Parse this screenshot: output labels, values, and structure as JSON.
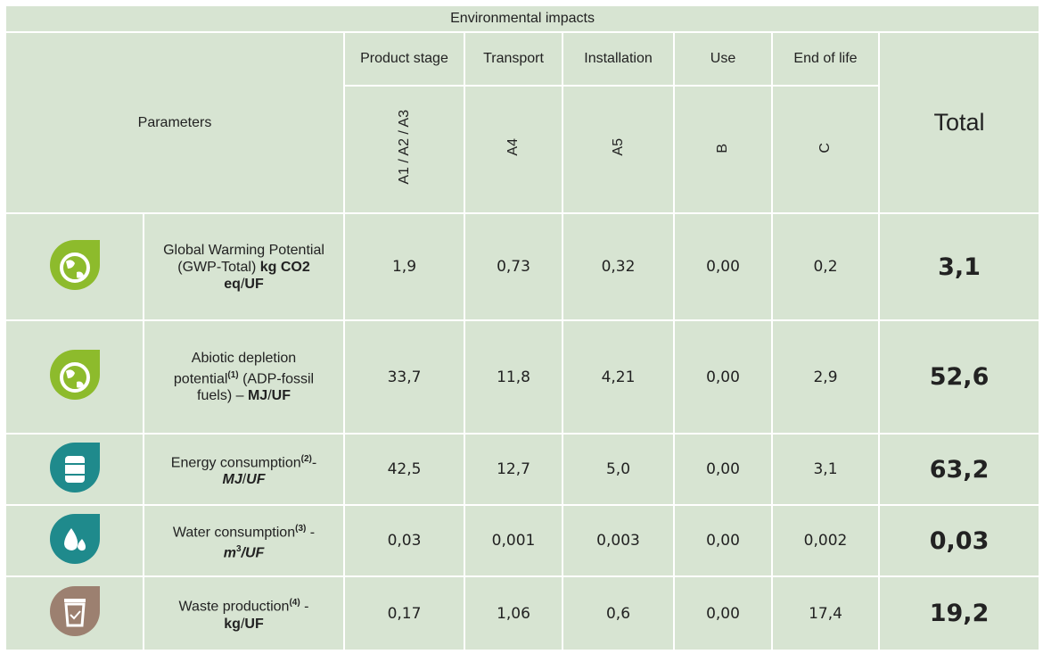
{
  "title": "Environmental impacts",
  "header": {
    "parameters": "Parameters",
    "total": "Total",
    "stages": [
      {
        "name": "Product stage",
        "code": "A1 / A2 / A3"
      },
      {
        "name": "Transport",
        "code": "A4"
      },
      {
        "name": "Installation",
        "code": "A5"
      },
      {
        "name": "Use",
        "code": "B"
      },
      {
        "name": "End of life",
        "code": "C"
      }
    ]
  },
  "rows": [
    {
      "icon": {
        "kind": "globe",
        "color": "#8dbb2c"
      },
      "label": [
        {
          "text": "Global Warming Potential (GWP-Total) ",
          "style": "n"
        },
        {
          "text": "kg CO2 eq",
          "style": "b"
        },
        {
          "text": "/",
          "style": "n"
        },
        {
          "text": "UF",
          "style": "b"
        }
      ],
      "values": [
        "1,9",
        "0,73",
        "0,32",
        "0,00",
        "0,2"
      ],
      "total": "3,1"
    },
    {
      "icon": {
        "kind": "globe",
        "color": "#8dbb2c"
      },
      "label": [
        {
          "text": "Abiotic depletion potential",
          "style": "n"
        },
        {
          "text": "(1)",
          "style": "sup"
        },
        {
          "text": " (ADP-fossil fuels) – ",
          "style": "n"
        },
        {
          "text": "MJ",
          "style": "b"
        },
        {
          "text": "/",
          "style": "n"
        },
        {
          "text": "UF",
          "style": "b"
        }
      ],
      "values": [
        "33,7",
        "11,8",
        "4,21",
        "0,00",
        "2,9"
      ],
      "total": "52,6"
    },
    {
      "icon": {
        "kind": "barrel",
        "color": "#1f8a8c"
      },
      "label": [
        {
          "text": "Energy consumption",
          "style": "n"
        },
        {
          "text": "(2)",
          "style": "sup"
        },
        {
          "text": "- ",
          "style": "n"
        },
        {
          "text": "MJ",
          "style": "bi"
        },
        {
          "text": "/",
          "style": "n"
        },
        {
          "text": "UF",
          "style": "bi"
        }
      ],
      "values": [
        "42,5",
        "12,7",
        "5,0",
        "0,00",
        "3,1"
      ],
      "total": "63,2"
    },
    {
      "icon": {
        "kind": "drops",
        "color": "#1f8a8c"
      },
      "label": [
        {
          "text": "Water consumption",
          "style": "n"
        },
        {
          "text": "(3)",
          "style": "sup"
        },
        {
          "text": " - ",
          "style": "n"
        },
        {
          "text": "m",
          "style": "bi"
        },
        {
          "text": "3",
          "style": "sup"
        },
        {
          "text": "/UF",
          "style": "bi"
        }
      ],
      "values": [
        "0,03",
        "0,001",
        "0,003",
        "0,00",
        "0,002"
      ],
      "total": "0,03"
    },
    {
      "icon": {
        "kind": "bin",
        "color": "#9c8070"
      },
      "label": [
        {
          "text": "Waste production",
          "style": "n"
        },
        {
          "text": "(4)",
          "style": "sup"
        },
        {
          "text": " - ",
          "style": "n"
        },
        {
          "text": "kg",
          "style": "b"
        },
        {
          "text": "/",
          "style": "n"
        },
        {
          "text": "UF",
          "style": "b"
        }
      ],
      "values": [
        "0,17",
        "1,06",
        "0,6",
        "0,00",
        "17,4"
      ],
      "total": "19,2"
    }
  ]
}
